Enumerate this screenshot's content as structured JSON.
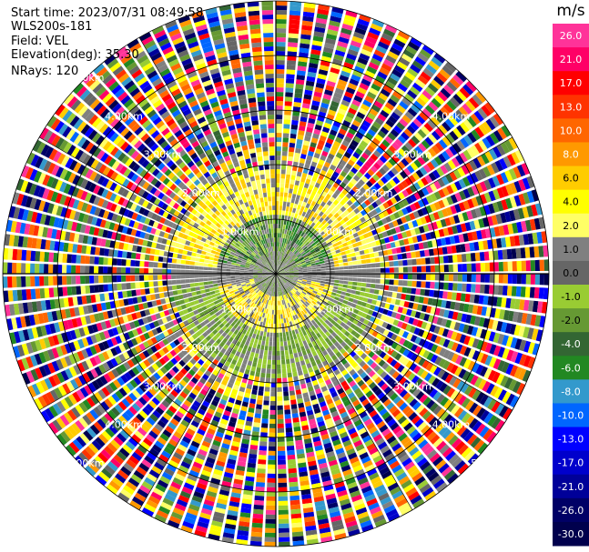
{
  "header": {
    "start_time": "Start time: 2023/07/31 08:49:58",
    "instrument": "WLS200s-181",
    "field": "Field: VEL",
    "elevation": "Elevation(deg): 35.30",
    "nrays": "NRays: 120"
  },
  "chart_data": {
    "type": "heatmap",
    "subtype": "polar-ppi",
    "field": "VEL",
    "nrays": 120,
    "range_rings_km": [
      1.0,
      2.0,
      3.0,
      4.0,
      5.0
    ],
    "ring_label_text": [
      "1.00km",
      "2.00km",
      "3.00km",
      "4.00km",
      "5.00km"
    ],
    "colorbar": {
      "unit": "m/s",
      "ticks": [
        "26.0",
        "21.0",
        "17.0",
        "13.0",
        "10.0",
        "8.0",
        "6.0",
        "4.0",
        "2.0",
        "1.0",
        "0.0",
        "-1.0",
        "-2.0",
        "-4.0",
        "-6.0",
        "-8.0",
        "-10.0",
        "-13.0",
        "-17.0",
        "-21.0",
        "-26.0",
        "-30.0"
      ],
      "colors": [
        "#ff3399",
        "#ff0066",
        "#ff0000",
        "#ff3300",
        "#ff6600",
        "#ff9900",
        "#ffcc00",
        "#ffff00",
        "#ffff66",
        "#808080",
        "#666666",
        "#99cc33",
        "#669933",
        "#336633",
        "#228822",
        "#3399cc",
        "#0066ff",
        "#0000ff",
        "#0000cc",
        "#000099",
        "#000066",
        "#00004d"
      ]
    },
    "grid": true,
    "legend": "right"
  }
}
